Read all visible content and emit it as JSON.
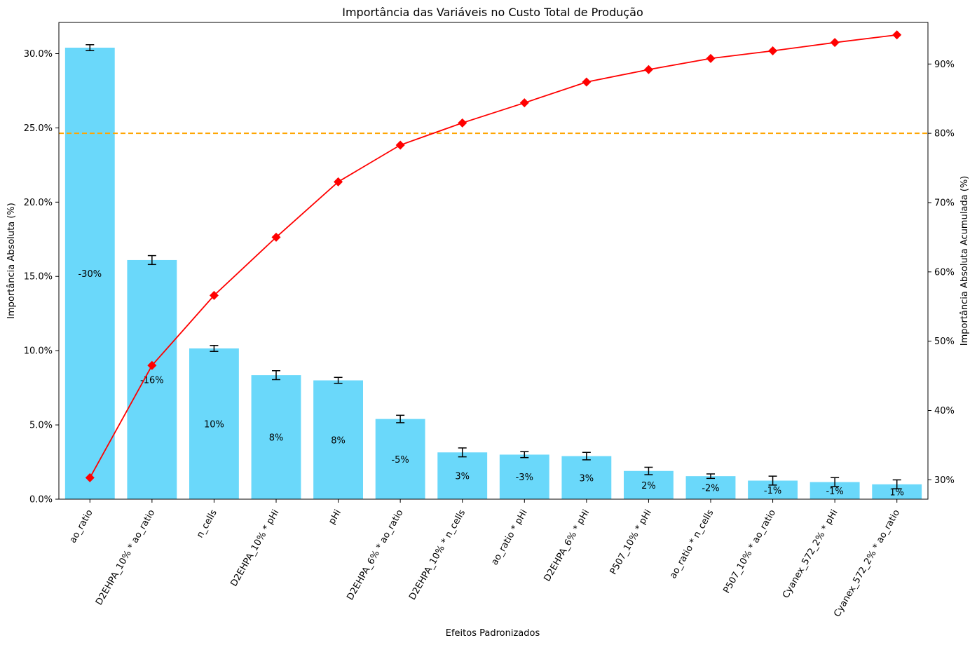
{
  "chart_data": {
    "type": "bar",
    "title": "Importância das Variáveis no Custo Total de Produção",
    "xlabel": "Efeitos Padronizados",
    "ylabel": "Importância Absoluta (%)",
    "y2label": "Importância Absoluta Acumulada (%)",
    "categories": [
      "ao_ratio",
      "D2EHPA_10% * ao_ratio",
      "n_cells",
      "D2EHPA_10% * pHi",
      "pHi",
      "D2EHPA_6% * ao_ratio",
      "D2EHPA_10% * n_cells",
      "ao_ratio * pHi",
      "D2EHPA_6% * pHi",
      "P507_10% * pHi",
      "ao_ratio * n_cells",
      "P507_10% * ao_ratio",
      "Cyanex_572_2% * pHi",
      "Cyanex_572_2% * ao_ratio"
    ],
    "values": [
      30.4,
      16.1,
      10.15,
      8.35,
      8.0,
      5.4,
      3.15,
      3.0,
      2.9,
      1.9,
      1.55,
      1.25,
      1.15,
      1.0
    ],
    "errors": [
      0.2,
      0.3,
      0.2,
      0.3,
      0.2,
      0.25,
      0.3,
      0.2,
      0.25,
      0.25,
      0.15,
      0.3,
      0.3,
      0.3
    ],
    "bar_labels": [
      "-30%",
      "-16%",
      "10%",
      "8%",
      "8%",
      "-5%",
      "3%",
      "-3%",
      "3%",
      "2%",
      "-2%",
      "-1%",
      "-1%",
      "1%"
    ],
    "cumulative": [
      30.3,
      46.5,
      56.6,
      65.0,
      73.0,
      78.3,
      81.5,
      84.4,
      87.4,
      89.2,
      90.8,
      91.9,
      93.1,
      94.2
    ],
    "threshold": 80,
    "ylim": [
      0,
      32.1
    ],
    "y2lim": [
      27.2,
      96.0
    ],
    "yticks": [
      0,
      5,
      10,
      15,
      20,
      25,
      30
    ],
    "y2ticks": [
      30,
      40,
      50,
      60,
      70,
      80,
      90
    ],
    "colors": {
      "bar": "#6ad8fa",
      "line": "#ff0000",
      "threshold": "#ffa500",
      "error": "#000000"
    }
  }
}
